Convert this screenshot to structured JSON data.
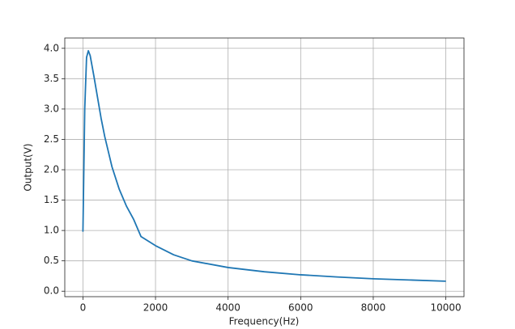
{
  "chart_data": {
    "type": "line",
    "x_label": "Frequency(Hz)",
    "y_label": "Output(V)",
    "x": [
      0,
      50,
      100,
      150,
      200,
      300,
      400,
      500,
      600,
      700,
      800,
      1000,
      1200,
      1400,
      1600,
      2000,
      2500,
      3000,
      4000,
      5000,
      6000,
      7000,
      8000,
      9000,
      10000
    ],
    "series": [
      {
        "color": "#1f77b4",
        "values": [
          0.98,
          3.0,
          3.85,
          3.96,
          3.88,
          3.55,
          3.2,
          2.85,
          2.55,
          2.3,
          2.05,
          1.68,
          1.4,
          1.18,
          0.9,
          0.75,
          0.6,
          0.5,
          0.39,
          0.32,
          0.27,
          0.235,
          0.205,
          0.185,
          0.165
        ]
      }
    ],
    "xlim": [
      -500,
      10500
    ],
    "ylim": [
      -0.09,
      4.17
    ],
    "xticks": [
      0,
      2000,
      4000,
      6000,
      8000,
      10000
    ],
    "yticks": [
      {
        "value": 0,
        "label": "0.0"
      },
      0.5,
      {
        "value": 1,
        "label": "1.0"
      },
      1.5,
      {
        "value": 2,
        "label": "2.0"
      },
      2.5,
      {
        "value": 3,
        "label": "3.0"
      },
      3.5,
      {
        "value": 4,
        "label": "4.0"
      }
    ],
    "grid": true
  }
}
